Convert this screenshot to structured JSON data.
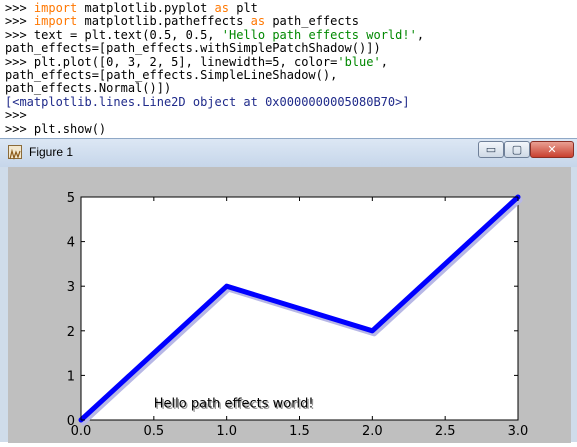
{
  "console": {
    "lines": [
      [
        {
          "t": ">>> "
        },
        {
          "t": "import",
          "c": "kw"
        },
        {
          "t": " matplotlib.pyplot "
        },
        {
          "t": "as",
          "c": "kw"
        },
        {
          "t": " plt"
        }
      ],
      [
        {
          "t": ">>> "
        },
        {
          "t": "import",
          "c": "kw"
        },
        {
          "t": " matplotlib.patheffects "
        },
        {
          "t": "as",
          "c": "kw"
        },
        {
          "t": " path_effects"
        }
      ],
      [
        {
          "t": ">>> text = plt.text(0.5, 0.5, "
        },
        {
          "t": "'Hello path effects world!'",
          "c": "str"
        },
        {
          "t": ","
        }
      ],
      [
        {
          "t": "path_effects=[path_effects.withSimplePatchShadow()])"
        }
      ],
      [
        {
          "t": ">>> plt.plot([0, 3, 2, 5], linewidth=5, color="
        },
        {
          "t": "'blue'",
          "c": "str"
        },
        {
          "t": ","
        }
      ],
      [
        {
          "t": "path_effects=[path_effects.SimpleLineShadow(),"
        }
      ],
      [
        {
          "t": "path_effects.Normal()])"
        }
      ],
      [
        {
          "t": "[<matplotlib.lines.Line2D object at 0x0000000005080B70>]",
          "c": "out"
        }
      ],
      [
        {
          "t": ">>>"
        }
      ],
      [
        {
          "t": ">>> plt.show()"
        }
      ]
    ]
  },
  "window": {
    "title": "Figure 1",
    "minimize_label": "▭",
    "maximize_label": "▢",
    "close_label": "✕"
  },
  "chart_data": {
    "type": "line",
    "x": [
      0,
      1,
      2,
      3
    ],
    "series": [
      {
        "values": [
          0,
          3,
          2,
          5
        ],
        "color": "#0000ff"
      }
    ],
    "xlim": [
      0.0,
      3.0
    ],
    "ylim": [
      0,
      5
    ],
    "xticks": [
      "0.0",
      "0.5",
      "1.0",
      "1.5",
      "2.0",
      "2.5",
      "3.0"
    ],
    "yticks": [
      "0",
      "1",
      "2",
      "3",
      "4",
      "5"
    ],
    "annotation": {
      "text": "Hello path effects world!",
      "x": 0.5,
      "y": 0.5
    },
    "grid": false
  }
}
